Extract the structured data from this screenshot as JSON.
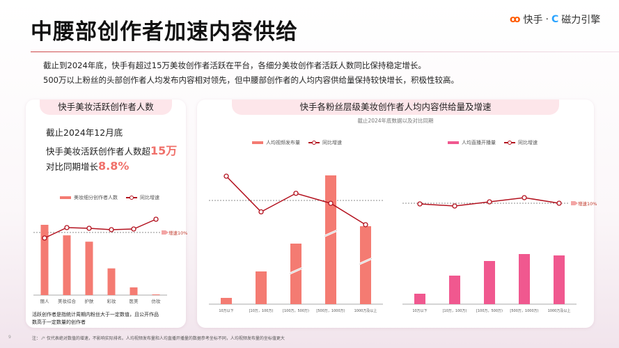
{
  "header": {
    "title": "中腰部创作者加速内容供给",
    "logo_brand1": "快手",
    "logo_sep": "·",
    "logo_brand2": "磁力引擎"
  },
  "intro": [
    "截止到2024年底，快手有超过15万美妆创作者活跃在平台，各细分美妆创作者活跃人数同比保持稳定增长。",
    "500万以上粉丝的头部创作者人均发布内容相对领先，但中腰部创作者的人均内容供给量保持较快增长，积极性较高。"
  ],
  "left_card": {
    "title": "快手美妆活跃创作者人数",
    "line1": "截止2024年12月底",
    "line2_prefix": "快手美妆活跃创作者人数超",
    "line2_value": "15万",
    "line3_prefix": "对比同期增长",
    "line3_value": "8.8%",
    "note_line1": "活跃创作者是指统计周期内粉丝大于一定数值，且公开作品",
    "note_line2": "数高于一定数量的创作者"
  },
  "right_card": {
    "title": "快手各粉丝层级美妆创作者人均内容供给量及增速",
    "subtitle": "截止2024年底数据以及对比同期"
  },
  "footer": {
    "page": "9",
    "note_label": "注：",
    "note_text": "仅代表绝对数值的增速，不影响实际排名。人均视频发布量和人均直播开播量的数据参考坐标不同，人均视频发布量的坐标值更大"
  },
  "colors": {
    "bar_coral": "#f47b72",
    "bar_pink": "#f0588f",
    "line": "#b3111e",
    "accent": "#f0706a"
  },
  "chart_data": [
    {
      "type": "bar",
      "categories": [
        "丽人",
        "美妆综合",
        "护肤",
        "彩妆",
        "医美",
        "仿妆"
      ],
      "series": [
        {
          "name": "美妆细分创作者人数",
          "type": "bar",
          "values": [
            100,
            85,
            76,
            38,
            11,
            1
          ]
        },
        {
          "name": "同比增速",
          "type": "line",
          "values": [
            6,
            13.5,
            13,
            12,
            12.5,
            19.5
          ]
        }
      ],
      "reference": {
        "value": 10,
        "label": "增速10%"
      }
    },
    {
      "type": "bar",
      "categories": [
        "10万以下",
        "[10万，100万)",
        "[100万，500万)",
        "[500万，1000万)",
        "1000万及以上"
      ],
      "series": [
        {
          "name": "人均视频发布量",
          "type": "bar",
          "values": [
            9,
            47,
            87,
            185,
            112
          ],
          "broken_axis": [
            false,
            false,
            true,
            true,
            true
          ]
        },
        {
          "name": "同比增速",
          "type": "line",
          "values": [
            27,
            2,
            15,
            8,
            -7
          ]
        }
      ],
      "reference": {
        "value": 10
      }
    },
    {
      "type": "bar",
      "categories": [
        "10万以下",
        "[10万，100万)",
        "[100万，500万)",
        "[500万，1000万)",
        "1000万及以上"
      ],
      "series": [
        {
          "name": "人均直播开播量",
          "type": "bar",
          "values": [
            15,
            41,
            62,
            72,
            70
          ]
        },
        {
          "name": "同比增速",
          "type": "line",
          "values": [
            9.5,
            8,
            11,
            14,
            10
          ]
        }
      ],
      "reference": {
        "value": 10,
        "label": "增速10%"
      }
    }
  ]
}
